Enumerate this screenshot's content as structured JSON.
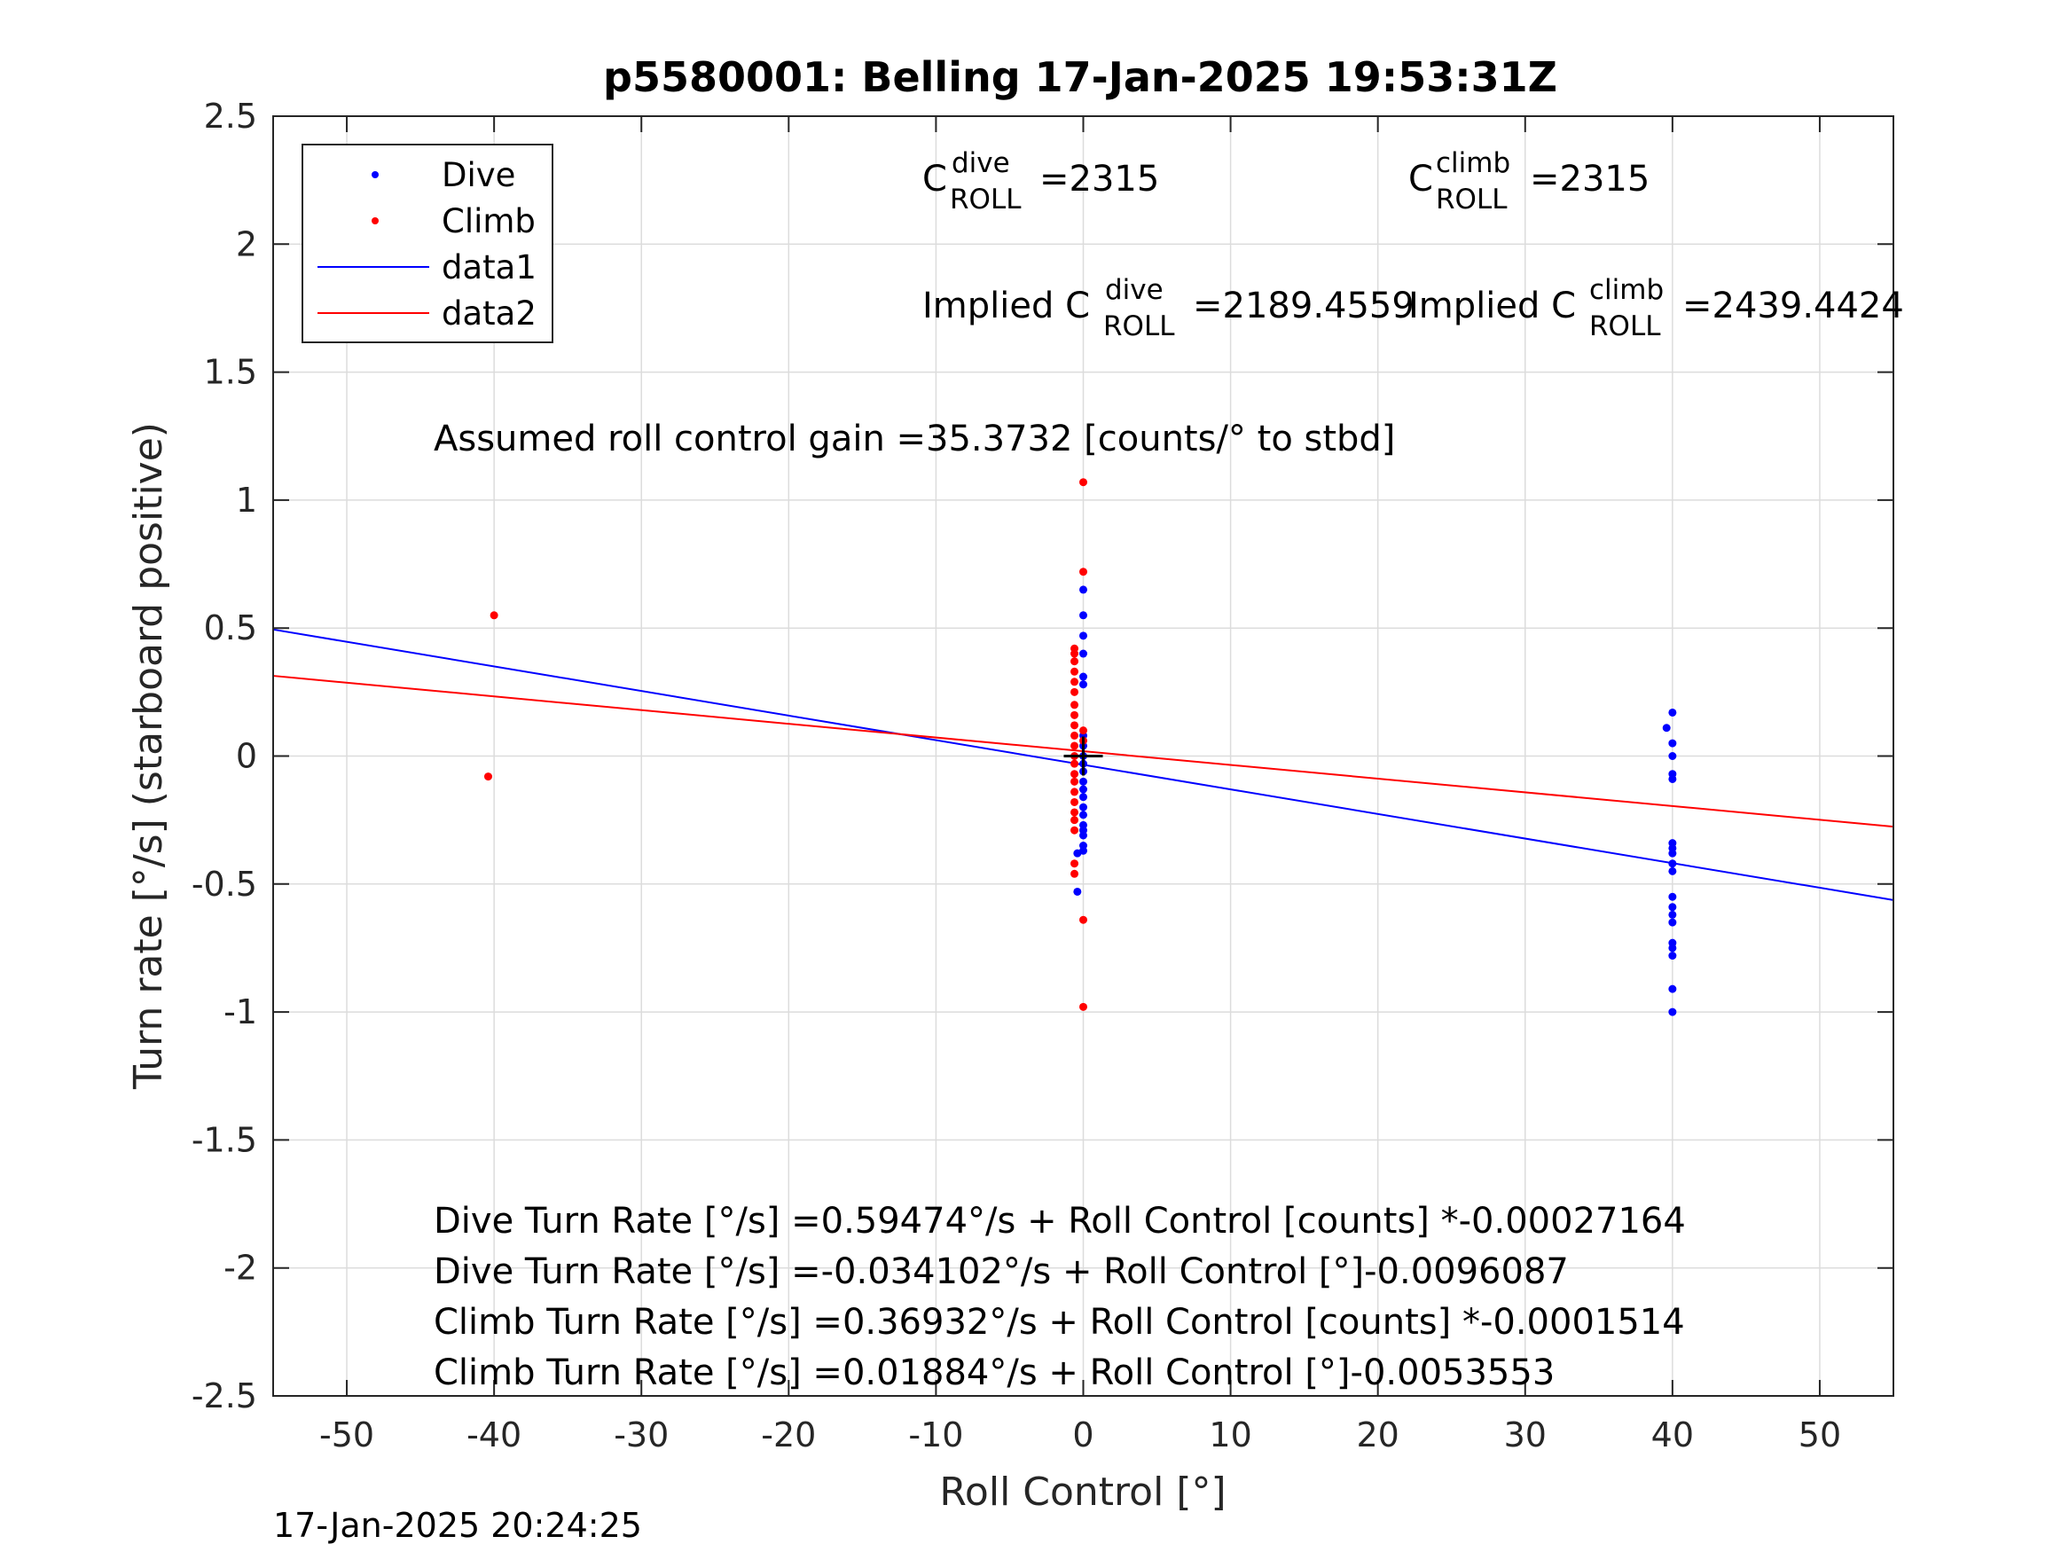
{
  "chart_data": {
    "type": "scatter",
    "title": "p5580001: Belling 17-Jan-2025 19:53:31Z",
    "xlabel": "Roll Control [°]",
    "ylabel": "Turn rate [°/s] (starboard positive)",
    "xlim": [
      -55,
      55
    ],
    "ylim": [
      -2.5,
      2.5
    ],
    "xticks": [
      -50,
      -40,
      -30,
      -20,
      -10,
      0,
      10,
      20,
      30,
      40,
      50
    ],
    "yticks": [
      -2.5,
      -2,
      -1.5,
      -1,
      -0.5,
      0,
      0.5,
      1,
      1.5,
      2,
      2.5
    ],
    "grid": true,
    "legend_position": "top-left",
    "legend": [
      {
        "label": "Dive",
        "kind": "marker",
        "color": "#0000ff"
      },
      {
        "label": "Climb",
        "kind": "marker",
        "color": "#ff0000"
      },
      {
        "label": "data1",
        "kind": "line",
        "color": "#0000ff"
      },
      {
        "label": "data2",
        "kind": "line",
        "color": "#ff0000"
      }
    ],
    "series": [
      {
        "name": "Dive",
        "kind": "scatter",
        "color": "#0000ff",
        "points": [
          [
            0,
            0.65
          ],
          [
            0,
            0.55
          ],
          [
            0,
            0.47
          ],
          [
            0,
            0.4
          ],
          [
            0,
            0.31
          ],
          [
            0,
            0.28
          ],
          [
            0,
            0.08
          ],
          [
            0,
            0.04
          ],
          [
            0,
            0.0
          ],
          [
            0,
            -0.03
          ],
          [
            0,
            -0.06
          ],
          [
            0,
            -0.1
          ],
          [
            0,
            -0.13
          ],
          [
            0,
            -0.16
          ],
          [
            0,
            -0.2
          ],
          [
            0,
            -0.23
          ],
          [
            0,
            -0.27
          ],
          [
            0,
            -0.29
          ],
          [
            0,
            -0.31
          ],
          [
            0,
            -0.35
          ],
          [
            0,
            -0.37
          ],
          [
            -0.4,
            -0.38
          ],
          [
            -0.4,
            -0.53
          ],
          [
            40,
            0.17
          ],
          [
            39.6,
            0.11
          ],
          [
            40,
            0.05
          ],
          [
            40,
            0.0
          ],
          [
            40,
            -0.07
          ],
          [
            40,
            -0.09
          ],
          [
            40,
            -0.34
          ],
          [
            40,
            -0.36
          ],
          [
            40,
            -0.38
          ],
          [
            40,
            -0.42
          ],
          [
            40,
            -0.45
          ],
          [
            40,
            -0.55
          ],
          [
            40,
            -0.59
          ],
          [
            40,
            -0.62
          ],
          [
            40,
            -0.65
          ],
          [
            40,
            -0.73
          ],
          [
            40,
            -0.75
          ],
          [
            40,
            -0.78
          ],
          [
            40,
            -0.91
          ],
          [
            40,
            -1.0
          ]
        ]
      },
      {
        "name": "Climb",
        "kind": "scatter",
        "color": "#ff0000",
        "points": [
          [
            0,
            1.07
          ],
          [
            0,
            0.72
          ],
          [
            0,
            0.06
          ],
          [
            0,
            0.1
          ],
          [
            0,
            -0.64
          ],
          [
            0,
            -0.98
          ],
          [
            -40,
            0.55
          ],
          [
            -40.4,
            -0.08
          ],
          [
            -0.6,
            0.42
          ],
          [
            -0.6,
            0.4
          ],
          [
            -0.6,
            0.37
          ],
          [
            -0.6,
            0.33
          ],
          [
            -0.6,
            0.29
          ],
          [
            -0.6,
            0.25
          ],
          [
            -0.6,
            0.2
          ],
          [
            -0.6,
            0.16
          ],
          [
            -0.6,
            0.12
          ],
          [
            -0.6,
            0.08
          ],
          [
            -0.6,
            0.04
          ],
          [
            -0.6,
            0.0
          ],
          [
            -0.6,
            -0.03
          ],
          [
            -0.6,
            -0.07
          ],
          [
            -0.6,
            -0.1
          ],
          [
            -0.6,
            -0.14
          ],
          [
            -0.6,
            -0.18
          ],
          [
            -0.6,
            -0.22
          ],
          [
            -0.6,
            -0.25
          ],
          [
            -0.6,
            -0.29
          ],
          [
            -0.6,
            -0.42
          ],
          [
            -0.6,
            -0.46
          ]
        ]
      },
      {
        "name": "data1",
        "kind": "line",
        "color": "#0000ff",
        "x": [
          -55,
          55
        ],
        "y": [
          0.49437,
          -0.56259
        ]
      },
      {
        "name": "data2",
        "kind": "line",
        "color": "#ff0000",
        "x": [
          -55,
          55
        ],
        "y": [
          0.31338,
          -0.2757
        ]
      }
    ],
    "center_marker": {
      "x": 0,
      "y": 0,
      "symbol": "+",
      "color": "#000000"
    },
    "annotations": {
      "c_roll_dive": {
        "base": "C",
        "sup": "dive",
        "sub": "ROLL",
        "value": "=2315"
      },
      "c_roll_climb": {
        "base": "C",
        "sup": "climb",
        "sub": "ROLL",
        "value": "=2315"
      },
      "implied_dive": {
        "prefix": "Implied C",
        "sup": "dive",
        "sub": "ROLL",
        "value": "=2189.4559"
      },
      "implied_climb": {
        "prefix": "Implied C",
        "sup": "climb",
        "sub": "ROLL",
        "value": "=2439.4424"
      },
      "gain": "Assumed roll control gain =35.3732 [counts/° to stbd]",
      "equations": [
        "Dive Turn Rate [°/s] =0.59474°/s + Roll Control [counts] *-0.00027164",
        "Dive Turn Rate [°/s] =-0.034102°/s + Roll Control [°]-0.0096087",
        "Climb Turn Rate [°/s] =0.36932°/s + Roll Control [counts] *-0.0001514",
        "Climb Turn Rate [°/s] =0.01884°/s + Roll Control [°]-0.0053553"
      ]
    }
  },
  "footer": {
    "timestamp": "17-Jan-2025 20:24:25"
  }
}
